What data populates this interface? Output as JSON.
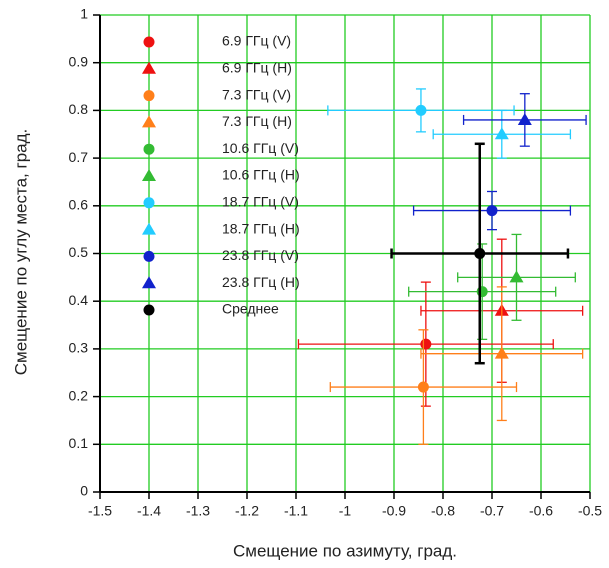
{
  "chart_data": {
    "type": "scatter",
    "xlabel": "Смещение по азимуту, град.",
    "ylabel": "Смещение по углу места, град.",
    "xlim": [
      -1.5,
      -0.5
    ],
    "ylim": [
      0,
      1
    ],
    "xticks": [
      -1.5,
      -1.4,
      -1.3,
      -1.2,
      -1.1,
      -1,
      -0.9,
      -0.8,
      -0.7,
      -0.6,
      -0.5
    ],
    "yticks": [
      0,
      0.1,
      0.2,
      0.3,
      0.4,
      0.5,
      0.6,
      0.7,
      0.8,
      0.9,
      1
    ],
    "grid": true,
    "grid_color": "#22cc22",
    "legend": "upper left",
    "series": [
      {
        "name": "6.9 ГГц (V)",
        "color": "#ee1111",
        "marker": "circle",
        "x": [
          -0.835
        ],
        "values": [
          0.31
        ],
        "xerr": [
          0.26
        ],
        "yerr": [
          0.13
        ]
      },
      {
        "name": "6.9 ГГц (H)",
        "color": "#ee1111",
        "marker": "triangle",
        "x": [
          -0.68
        ],
        "values": [
          0.38
        ],
        "xerr": [
          0.165
        ],
        "yerr": [
          0.15
        ]
      },
      {
        "name": "7.3 ГГц (V)",
        "color": "#ff7f1a",
        "marker": "circle",
        "x": [
          -0.84
        ],
        "values": [
          0.22
        ],
        "xerr": [
          0.19
        ],
        "yerr": [
          0.12
        ]
      },
      {
        "name": "7.3 ГГц (H)",
        "color": "#ff7f1a",
        "marker": "triangle",
        "x": [
          -0.68
        ],
        "values": [
          0.29
        ],
        "xerr": [
          0.165
        ],
        "yerr": [
          0.14
        ]
      },
      {
        "name": "10.6 ГГц (V)",
        "color": "#33bb33",
        "marker": "circle",
        "x": [
          -0.72
        ],
        "values": [
          0.42
        ],
        "xerr": [
          0.15
        ],
        "yerr": [
          0.1
        ]
      },
      {
        "name": "10.6 ГГц (H)",
        "color": "#33bb33",
        "marker": "triangle",
        "x": [
          -0.65
        ],
        "values": [
          0.45
        ],
        "xerr": [
          0.12
        ],
        "yerr": [
          0.09
        ]
      },
      {
        "name": "18.7 ГГц (V)",
        "color": "#22ccff",
        "marker": "circle",
        "x": [
          -0.845
        ],
        "values": [
          0.8
        ],
        "xerr": [
          0.19
        ],
        "yerr": [
          0.045
        ]
      },
      {
        "name": "18.7 ГГц (H)",
        "color": "#22ccff",
        "marker": "triangle",
        "x": [
          -0.68
        ],
        "values": [
          0.75
        ],
        "xerr": [
          0.14
        ],
        "yerr": [
          0.05
        ]
      },
      {
        "name": "23.8 ГГц (V)",
        "color": "#1122cc",
        "marker": "circle",
        "x": [
          -0.7
        ],
        "values": [
          0.59
        ],
        "xerr": [
          0.16
        ],
        "yerr": [
          0.04
        ]
      },
      {
        "name": "23.8 ГГц (H)",
        "color": "#1122cc",
        "marker": "triangle",
        "x": [
          -0.633
        ],
        "values": [
          0.78
        ],
        "xerr": [
          0.125
        ],
        "yerr": [
          0.055
        ]
      },
      {
        "name": "Среднее",
        "color": "#000000",
        "marker": "circle",
        "x": [
          -0.725
        ],
        "values": [
          0.5
        ],
        "xerr": [
          0.18
        ],
        "yerr": [
          0.23
        ]
      }
    ]
  }
}
